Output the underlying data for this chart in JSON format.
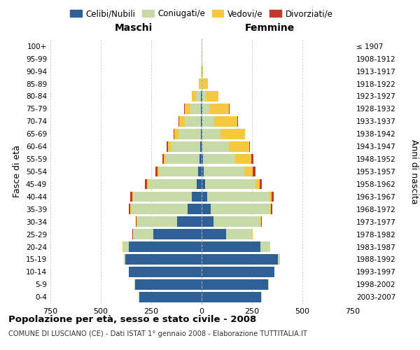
{
  "age_groups": [
    "0-4",
    "5-9",
    "10-14",
    "15-19",
    "20-24",
    "25-29",
    "30-34",
    "35-39",
    "40-44",
    "45-49",
    "50-54",
    "55-59",
    "60-64",
    "65-69",
    "70-74",
    "75-79",
    "80-84",
    "85-89",
    "90-94",
    "95-99",
    "100+"
  ],
  "birth_years": [
    "2003-2007",
    "1998-2002",
    "1993-1997",
    "1988-1992",
    "1983-1987",
    "1978-1982",
    "1973-1977",
    "1968-1972",
    "1963-1967",
    "1958-1962",
    "1953-1957",
    "1948-1952",
    "1943-1947",
    "1938-1942",
    "1933-1937",
    "1928-1932",
    "1923-1927",
    "1918-1922",
    "1913-1917",
    "1908-1912",
    "≤ 1907"
  ],
  "males": {
    "celibi": [
      310,
      330,
      360,
      380,
      360,
      240,
      120,
      70,
      50,
      25,
      18,
      12,
      8,
      5,
      5,
      4,
      2,
      0,
      0,
      0,
      0
    ],
    "coniugati": [
      2,
      2,
      2,
      5,
      30,
      100,
      200,
      280,
      290,
      240,
      195,
      165,
      145,
      110,
      80,
      50,
      25,
      5,
      2,
      0,
      0
    ],
    "vedovi": [
      0,
      0,
      0,
      0,
      2,
      2,
      3,
      5,
      5,
      5,
      5,
      10,
      15,
      20,
      25,
      30,
      20,
      8,
      2,
      0,
      0
    ],
    "divorziati": [
      0,
      0,
      0,
      0,
      0,
      2,
      4,
      6,
      8,
      10,
      10,
      8,
      5,
      4,
      3,
      2,
      0,
      0,
      0,
      0,
      0
    ]
  },
  "females": {
    "nubili": [
      295,
      330,
      360,
      380,
      290,
      120,
      60,
      45,
      28,
      18,
      12,
      8,
      5,
      4,
      3,
      2,
      2,
      0,
      0,
      0,
      0
    ],
    "coniugate": [
      2,
      2,
      2,
      10,
      50,
      130,
      230,
      295,
      310,
      250,
      200,
      160,
      130,
      90,
      60,
      35,
      18,
      5,
      2,
      0,
      0
    ],
    "vedove": [
      0,
      0,
      0,
      0,
      2,
      3,
      5,
      5,
      10,
      20,
      40,
      80,
      100,
      120,
      115,
      100,
      65,
      25,
      5,
      2,
      0
    ],
    "divorziate": [
      0,
      0,
      0,
      0,
      0,
      2,
      4,
      6,
      8,
      10,
      15,
      8,
      5,
      3,
      2,
      2,
      0,
      0,
      0,
      0,
      0
    ]
  },
  "color_celibi": "#2e6096",
  "color_coniugati": "#c8d9a8",
  "color_vedovi": "#f5c842",
  "color_divorziati": "#c0392b",
  "xlim": 750,
  "title": "Popolazione per età, sesso e stato civile - 2008",
  "subtitle": "COMUNE DI LUSCIANO (CE) - Dati ISTAT 1° gennaio 2008 - Elaborazione TUTTITALIA.IT",
  "ylabel_left": "Fasce di età",
  "ylabel_right": "Anni di nascita",
  "maschi_label": "Maschi",
  "femmine_label": "Femmine"
}
